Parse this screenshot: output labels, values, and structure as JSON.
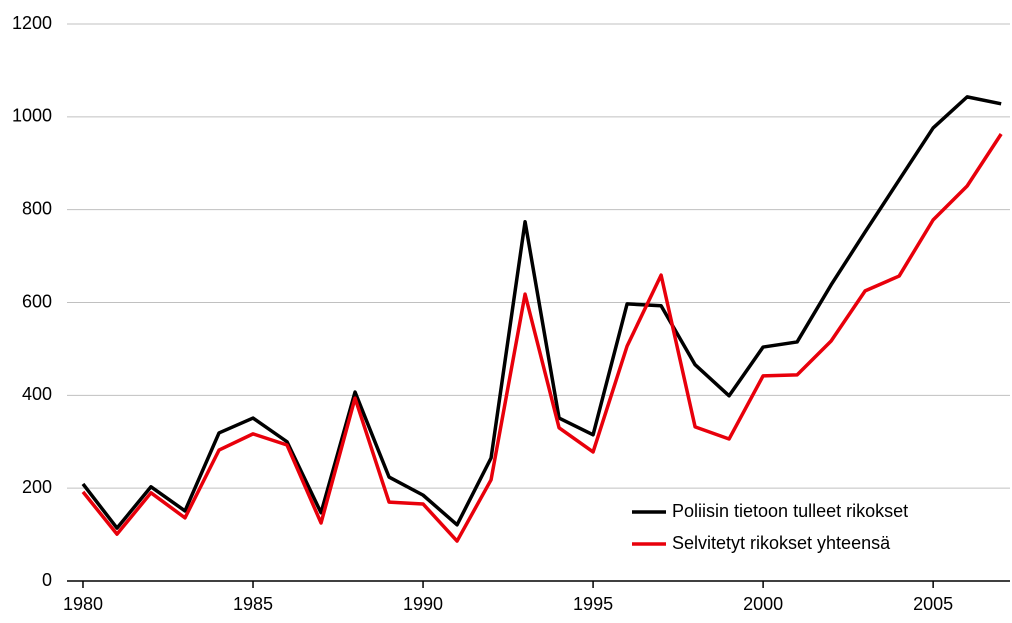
{
  "chart_data": {
    "type": "line",
    "x": [
      1980,
      1981,
      1982,
      1983,
      1984,
      1985,
      1986,
      1987,
      1988,
      1989,
      1990,
      1991,
      1992,
      1993,
      1994,
      1995,
      1996,
      1997,
      1998,
      1999,
      2000,
      2001,
      2002,
      2003,
      2004,
      2005,
      2006,
      2007
    ],
    "series": [
      {
        "name": "Poliisin tietoon tulleet rikokset",
        "color": "#000000",
        "values": [
          209,
          114,
          203,
          151,
          319,
          351,
          300,
          147,
          407,
          224,
          185,
          121,
          265,
          774,
          351,
          315,
          597,
          593,
          466,
          399,
          504,
          515,
          638,
          752,
          864,
          976,
          1043,
          1028
        ]
      },
      {
        "name": "Selvitetyt rikokset yhteensä",
        "color": "#e8000b",
        "values": [
          192,
          101,
          190,
          136,
          282,
          317,
          293,
          125,
          394,
          170,
          166,
          86,
          218,
          618,
          330,
          278,
          506,
          659,
          332,
          306,
          442,
          444,
          517,
          625,
          657,
          778,
          851,
          963
        ]
      }
    ],
    "xlim": [
      1979.53,
      2007.26
    ],
    "xticks": [
      1980,
      1985,
      1990,
      1995,
      2000,
      2005
    ],
    "ylim": [
      0,
      1200
    ],
    "yticks": [
      0,
      200,
      400,
      600,
      800,
      1000,
      1200
    ],
    "grid": true,
    "legend": "lower right"
  }
}
